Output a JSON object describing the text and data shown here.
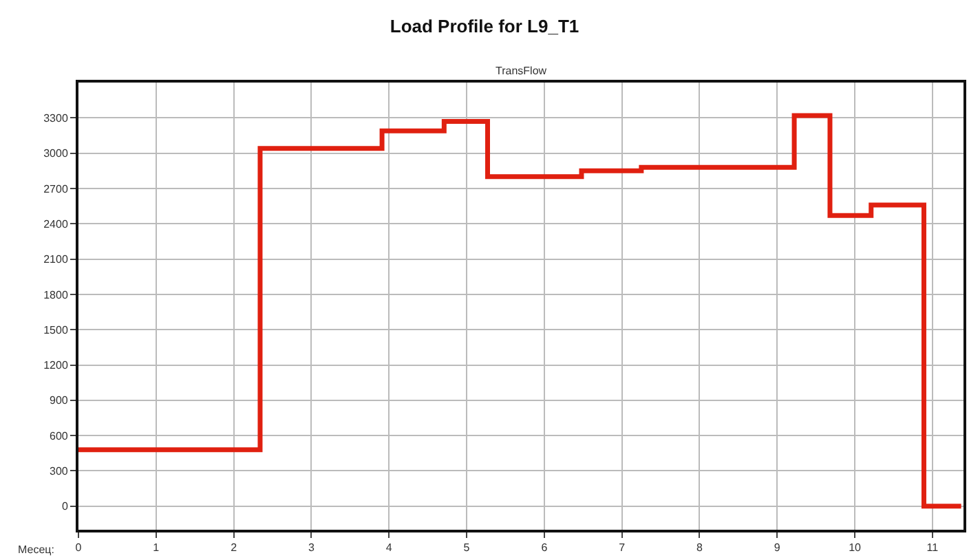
{
  "chart_data": {
    "type": "step",
    "title": "Load Profile for L9_T1",
    "subtitle": "TransFlow",
    "xlabel": "Месец:",
    "x": [
      0,
      2.34,
      3.91,
      4.71,
      5.27,
      6.48,
      7.25,
      9.22,
      9.68,
      10.21,
      10.89,
      11.37
    ],
    "series": [
      {
        "color": "#e02010",
        "values": [
          480,
          3040,
          3190,
          3270,
          2800,
          2850,
          2880,
          3320,
          2470,
          2560,
          0,
          0
        ]
      }
    ],
    "xlim": [
      0,
      11.4
    ],
    "xticks": [
      0,
      1,
      2,
      3,
      4,
      5,
      6,
      7,
      8,
      9,
      10,
      11
    ],
    "ylim": [
      -200,
      3600
    ],
    "yticks": [
      0,
      300,
      600,
      900,
      1200,
      1500,
      1800,
      2100,
      2400,
      2700,
      3000,
      3300
    ],
    "grid": true,
    "marker": "none",
    "line_style": "solid"
  }
}
